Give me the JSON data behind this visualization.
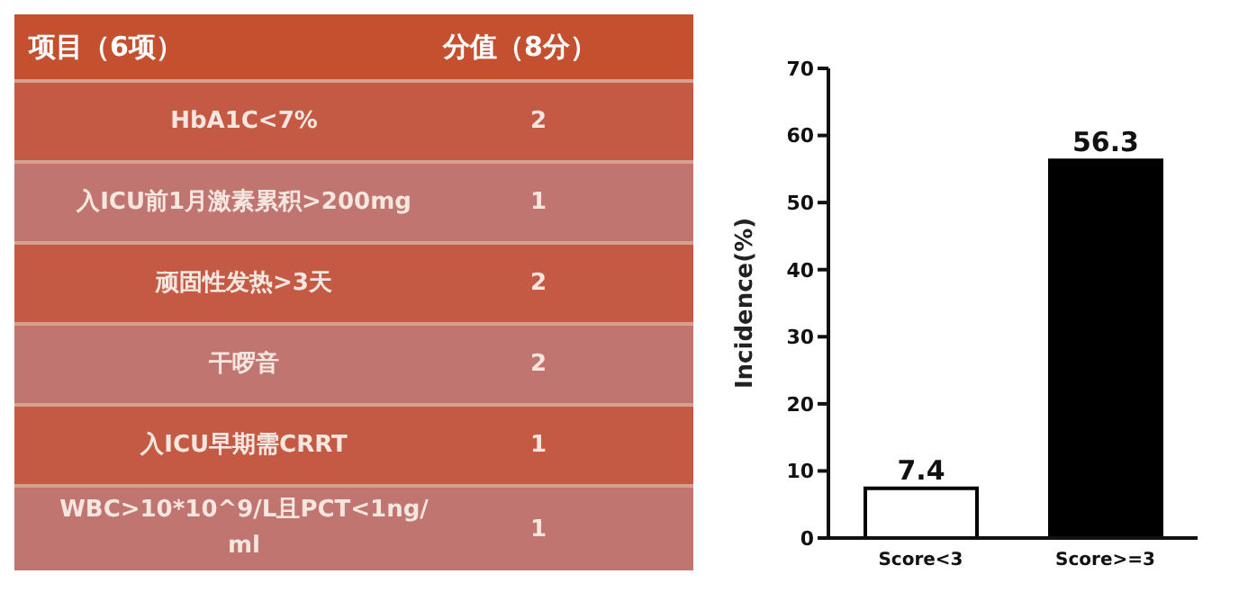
{
  "chart_data": [
    {
      "type": "other",
      "xlabel": "项目（6项）",
      "ylabel": "分值（8分）",
      "categories": [
        "HbA1C<7%",
        "入ICU前1月激素累积>200mg",
        "顽固性发热>3天",
        "干啰音",
        "入ICU早期需CRRT",
        "WBC>10*10^9/L且PCT<1ng/ml"
      ],
      "values": [
        2,
        1,
        2,
        2,
        1,
        1
      ],
      "data_labels": true
    },
    {
      "type": "bar",
      "ylabel": "Incidence(%)",
      "categories": [
        "Score<3",
        "Score>=3"
      ],
      "values": [
        7.4,
        56.3
      ],
      "colors": [
        "#ffffff",
        "#000000"
      ],
      "ylim": [
        0,
        70
      ],
      "yticks": [
        0,
        10,
        20,
        30,
        40,
        50,
        60,
        70
      ],
      "data_labels": true,
      "grid": false,
      "legend": false
    }
  ]
}
